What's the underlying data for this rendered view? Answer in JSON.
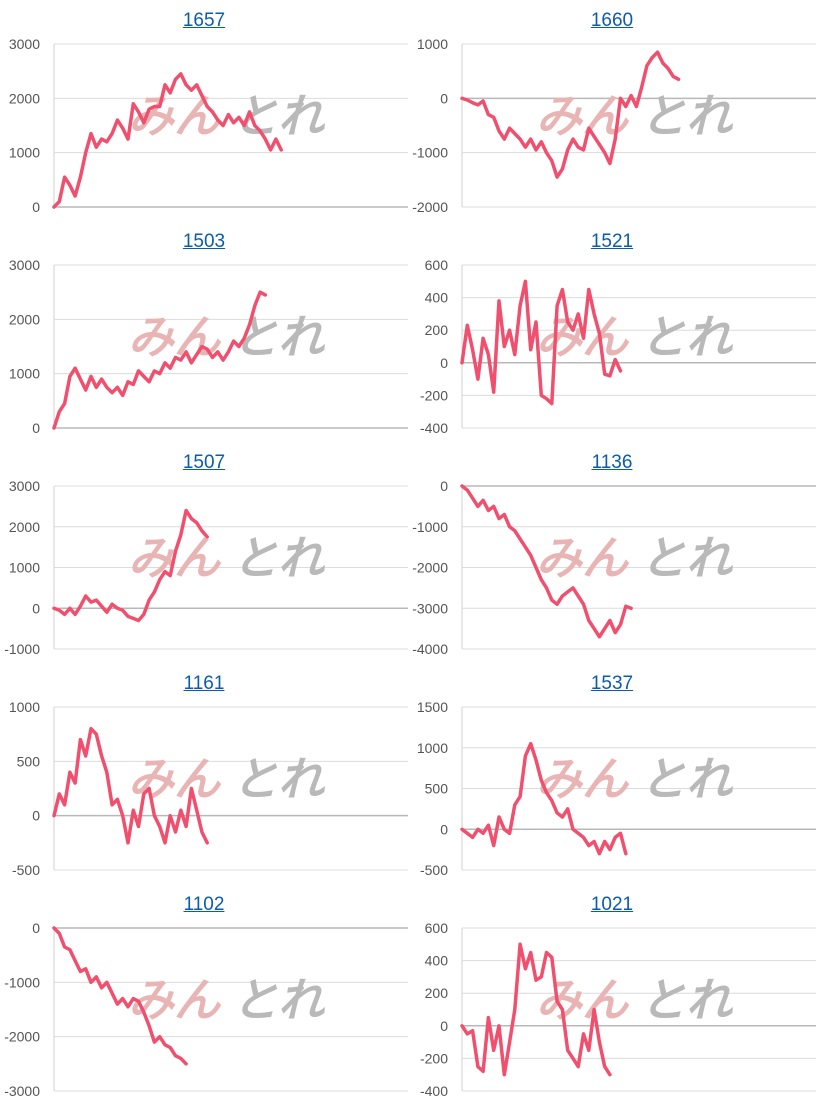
{
  "colors": {
    "line": "#f0506e",
    "grid": "#dcdcdc",
    "title": "#0b5cab",
    "watermark_pink": "#e8b4b4",
    "watermark_gray": "#b9b9b9"
  },
  "watermark": {
    "kana": "みん",
    "kanji": "とれ"
  },
  "chart_data": [
    {
      "type": "line",
      "title": "1657",
      "yticks": [
        0,
        1000,
        2000,
        3000
      ],
      "ylim": [
        0,
        3000
      ],
      "xlim": [
        0,
        67
      ],
      "series": [
        {
          "values": [
            0,
            100,
            550,
            400,
            200,
            550,
            1000,
            1350,
            1100,
            1250,
            1200,
            1350,
            1600,
            1450,
            1250,
            1900,
            1750,
            1550,
            1800,
            1850,
            1850,
            2250,
            2100,
            2350,
            2450,
            2250,
            2150,
            2250,
            2050,
            1850,
            1750,
            1600,
            1500,
            1700,
            1550,
            1650,
            1500,
            1750,
            1500,
            1400,
            1250,
            1050,
            1250,
            1050
          ]
        }
      ]
    },
    {
      "type": "line",
      "title": "1660",
      "yticks": [
        -2000,
        -1000,
        0,
        1000
      ],
      "ylim": [
        -2000,
        1000
      ],
      "xlim": [
        0,
        67
      ],
      "series": [
        {
          "values": [
            0,
            -30,
            -80,
            -120,
            -50,
            -300,
            -350,
            -600,
            -750,
            -550,
            -650,
            -750,
            -900,
            -750,
            -950,
            -800,
            -1000,
            -1150,
            -1450,
            -1300,
            -950,
            -750,
            -900,
            -950,
            -550,
            -700,
            -850,
            -1000,
            -1200,
            -750,
            0,
            -150,
            50,
            -150,
            200,
            600,
            750,
            850,
            650,
            550,
            400,
            350
          ]
        }
      ]
    },
    {
      "type": "line",
      "title": "1503",
      "yticks": [
        0,
        1000,
        2000,
        3000
      ],
      "ylim": [
        0,
        3000
      ],
      "xlim": [
        0,
        67
      ],
      "series": [
        {
          "values": [
            0,
            300,
            450,
            950,
            1100,
            900,
            700,
            950,
            750,
            900,
            750,
            650,
            750,
            600,
            850,
            800,
            1050,
            950,
            850,
            1050,
            1000,
            1200,
            1100,
            1300,
            1250,
            1400,
            1200,
            1350,
            1500,
            1450,
            1300,
            1400,
            1250,
            1400,
            1600,
            1500,
            1650,
            1900,
            2250,
            2500,
            2450
          ]
        }
      ]
    },
    {
      "type": "line",
      "title": "1521",
      "yticks": [
        -400,
        -200,
        0,
        200,
        400,
        600
      ],
      "ylim": [
        -400,
        600
      ],
      "xlim": [
        0,
        67
      ],
      "series": [
        {
          "values": [
            0,
            230,
            80,
            -100,
            150,
            50,
            -180,
            380,
            100,
            200,
            50,
            350,
            500,
            80,
            250,
            -200,
            -220,
            -250,
            350,
            450,
            250,
            200,
            300,
            150,
            450,
            300,
            180,
            -70,
            -80,
            20,
            -50
          ]
        }
      ]
    },
    {
      "type": "line",
      "title": "1507",
      "yticks": [
        -1000,
        0,
        1000,
        2000,
        3000
      ],
      "ylim": [
        -1000,
        3000
      ],
      "xlim": [
        0,
        67
      ],
      "series": [
        {
          "values": [
            0,
            -50,
            -150,
            0,
            -150,
            50,
            300,
            150,
            200,
            50,
            -100,
            100,
            0,
            -50,
            -200,
            -250,
            -300,
            -150,
            200,
            400,
            700,
            900,
            800,
            1400,
            1800,
            2400,
            2200,
            2100,
            1900,
            1750
          ]
        }
      ]
    },
    {
      "type": "line",
      "title": "1136",
      "yticks": [
        -4000,
        -3000,
        -2000,
        -1000,
        0
      ],
      "ylim": [
        -4000,
        0
      ],
      "xlim": [
        0,
        67
      ],
      "series": [
        {
          "values": [
            0,
            -100,
            -300,
            -500,
            -350,
            -600,
            -500,
            -800,
            -700,
            -1000,
            -1100,
            -1300,
            -1500,
            -1700,
            -2000,
            -2300,
            -2500,
            -2800,
            -2900,
            -2700,
            -2600,
            -2500,
            -2700,
            -2900,
            -3300,
            -3500,
            -3700,
            -3500,
            -3300,
            -3600,
            -3400,
            -2950,
            -3000
          ]
        }
      ]
    },
    {
      "type": "line",
      "title": "1161",
      "yticks": [
        -500,
        0,
        500,
        1000
      ],
      "ylim": [
        -500,
        1000
      ],
      "xlim": [
        0,
        67
      ],
      "series": [
        {
          "values": [
            0,
            200,
            100,
            400,
            300,
            700,
            550,
            800,
            750,
            550,
            400,
            100,
            150,
            0,
            -250,
            50,
            -100,
            200,
            250,
            0,
            -100,
            -250,
            0,
            -150,
            50,
            -100,
            250,
            50,
            -150,
            -250
          ]
        }
      ]
    },
    {
      "type": "line",
      "title": "1537",
      "yticks": [
        -500,
        0,
        500,
        1000,
        1500
      ],
      "ylim": [
        -500,
        1500
      ],
      "xlim": [
        0,
        67
      ],
      "series": [
        {
          "values": [
            0,
            -50,
            -100,
            0,
            -50,
            50,
            -200,
            150,
            0,
            -50,
            300,
            400,
            900,
            1050,
            850,
            600,
            450,
            350,
            200,
            150,
            250,
            0,
            -50,
            -100,
            -200,
            -150,
            -300,
            -150,
            -250,
            -100,
            -50,
            -300
          ]
        }
      ]
    },
    {
      "type": "line",
      "title": "1102",
      "yticks": [
        -3000,
        -2000,
        -1000,
        0
      ],
      "ylim": [
        -3000,
        0
      ],
      "xlim": [
        0,
        67
      ],
      "series": [
        {
          "values": [
            0,
            -100,
            -350,
            -400,
            -600,
            -800,
            -750,
            -1000,
            -900,
            -1100,
            -1000,
            -1200,
            -1400,
            -1300,
            -1450,
            -1300,
            -1350,
            -1550,
            -1800,
            -2100,
            -2000,
            -2150,
            -2200,
            -2350,
            -2400,
            -2500
          ]
        }
      ]
    },
    {
      "type": "line",
      "title": "1021",
      "yticks": [
        -400,
        -200,
        0,
        200,
        400,
        600
      ],
      "ylim": [
        -400,
        600
      ],
      "xlim": [
        0,
        67
      ],
      "series": [
        {
          "values": [
            0,
            -50,
            -30,
            -250,
            -280,
            50,
            -150,
            0,
            -300,
            -100,
            100,
            500,
            350,
            450,
            280,
            300,
            450,
            420,
            150,
            100,
            -150,
            -200,
            -250,
            -50,
            -150,
            100,
            -100,
            -250,
            -300
          ]
        }
      ]
    }
  ]
}
